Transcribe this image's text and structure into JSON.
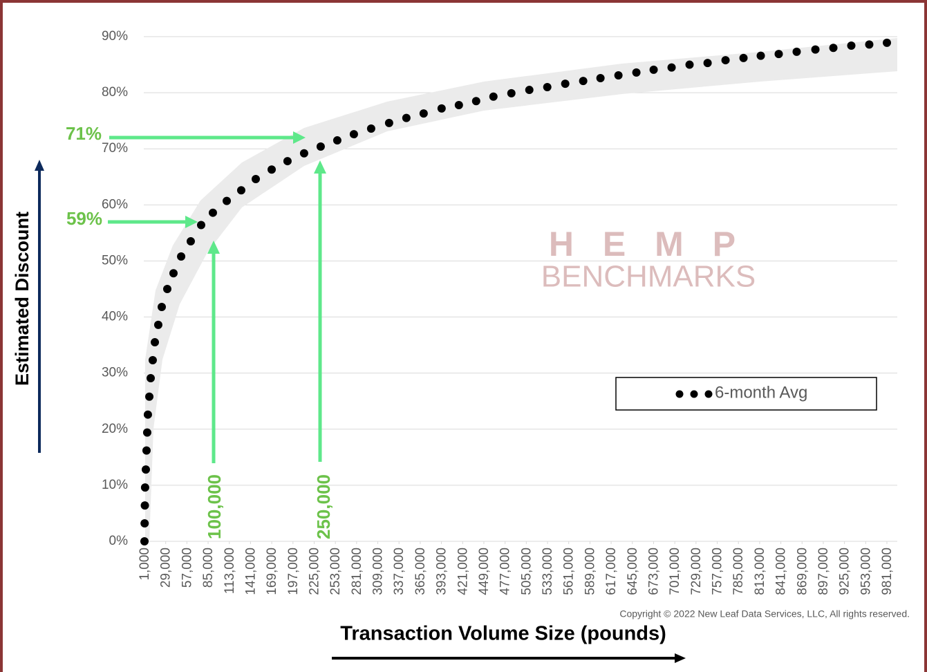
{
  "chart_data": {
    "type": "scatter",
    "y_axis_label": "Estimated Discount",
    "x_axis_label": "Transaction Volume Size (pounds)",
    "copyright": "Copyright © 2022 New Leaf Data Services, LLC, All rights reserved.",
    "watermark": [
      "H E M P",
      "BENCHMARKS"
    ],
    "annotations": [
      "71%",
      "59%",
      "100,000",
      "250,000"
    ],
    "legend_position": "right",
    "grid": true,
    "series": [
      {
        "name": "6-month Avg",
        "color": "#000000",
        "x": [
          1000,
          1200,
          1500,
          1800,
          2800,
          3700,
          4600,
          5500,
          7400,
          9200,
          11900,
          14700,
          19200,
          23800,
          31100,
          39300,
          49400,
          62100,
          75800,
          91300,
          109600,
          128700,
          147900,
          168900,
          189800,
          211700,
          233600,
          255500,
          277400,
          300200,
          323900,
          346700,
          369500,
          393200,
          416000,
          438800,
          461600,
          485300,
          509000,
          532700,
          556400,
          580100,
          602900,
          626600,
          650300,
          673100,
          696800,
          720500,
          744300,
          768000,
          791700,
          814500,
          838200,
          861900,
          886600,
          910300,
          934000,
          957700,
          981000
        ],
        "values": [
          0,
          3.2,
          6.4,
          9.6,
          12.8,
          16.2,
          19.4,
          22.6,
          25.8,
          29.1,
          32.3,
          35.5,
          38.6,
          41.8,
          45.0,
          47.8,
          50.8,
          53.5,
          56.4,
          58.6,
          60.7,
          62.6,
          64.6,
          66.3,
          67.8,
          69.2,
          70.4,
          71.5,
          72.6,
          73.6,
          74.6,
          75.5,
          76.3,
          77.2,
          77.8,
          78.5,
          79.3,
          79.9,
          80.5,
          81.0,
          81.6,
          82.1,
          82.6,
          83.1,
          83.6,
          84.1,
          84.5,
          85.0,
          85.3,
          85.8,
          86.2,
          86.6,
          86.9,
          87.3,
          87.7,
          88.0,
          88.4,
          88.6,
          88.9
        ]
      }
    ],
    "xlim": [
      1000,
      981000
    ],
    "xticks": [
      {
        "value": 1000,
        "label": "1,000"
      },
      {
        "value": 29000,
        "label": "29,000"
      },
      {
        "value": 57000,
        "label": "57,000"
      },
      {
        "value": 85000,
        "label": "85,000"
      },
      {
        "value": 113000,
        "label": "113,000"
      },
      {
        "value": 141000,
        "label": "141,000"
      },
      {
        "value": 169000,
        "label": "169,000"
      },
      {
        "value": 197000,
        "label": "197,000"
      },
      {
        "value": 225000,
        "label": "225,000"
      },
      {
        "value": 253000,
        "label": "253,000"
      },
      {
        "value": 281000,
        "label": "281,000"
      },
      {
        "value": 309000,
        "label": "309,000"
      },
      {
        "value": 337000,
        "label": "337,000"
      },
      {
        "value": 365000,
        "label": "365,000"
      },
      {
        "value": 393000,
        "label": "393,000"
      },
      {
        "value": 421000,
        "label": "421,000"
      },
      {
        "value": 449000,
        "label": "449,000"
      },
      {
        "value": 477000,
        "label": "477,000"
      },
      {
        "value": 505000,
        "label": "505,000"
      },
      {
        "value": 533000,
        "label": "533,000"
      },
      {
        "value": 561000,
        "label": "561,000"
      },
      {
        "value": 589000,
        "label": "589,000"
      },
      {
        "value": 617000,
        "label": "617,000"
      },
      {
        "value": 645000,
        "label": "645,000"
      },
      {
        "value": 673000,
        "label": "673,000"
      },
      {
        "value": 701000,
        "label": "701,000"
      },
      {
        "value": 729000,
        "label": "729,000"
      },
      {
        "value": 757000,
        "label": "757,000"
      },
      {
        "value": 785000,
        "label": "785,000"
      },
      {
        "value": 813000,
        "label": "813,000"
      },
      {
        "value": 841000,
        "label": "841,000"
      },
      {
        "value": 869000,
        "label": "869,000"
      },
      {
        "value": 897000,
        "label": "897,000"
      },
      {
        "value": 925000,
        "label": "925,000"
      },
      {
        "value": 953000,
        "label": "953,000"
      },
      {
        "value": 981000,
        "label": "981,000"
      }
    ],
    "ylim": [
      0,
      90
    ],
    "yticks": [
      {
        "value": 0,
        "label": "0%"
      },
      {
        "value": 10,
        "label": "10%"
      },
      {
        "value": 20,
        "label": "20%"
      },
      {
        "value": 30,
        "label": "30%"
      },
      {
        "value": 40,
        "label": "40%"
      },
      {
        "value": 50,
        "label": "50%"
      },
      {
        "value": 60,
        "label": "60%"
      },
      {
        "value": 70,
        "label": "70%"
      },
      {
        "value": 80,
        "label": "80%"
      },
      {
        "value": 90,
        "label": "90%"
      }
    ]
  }
}
